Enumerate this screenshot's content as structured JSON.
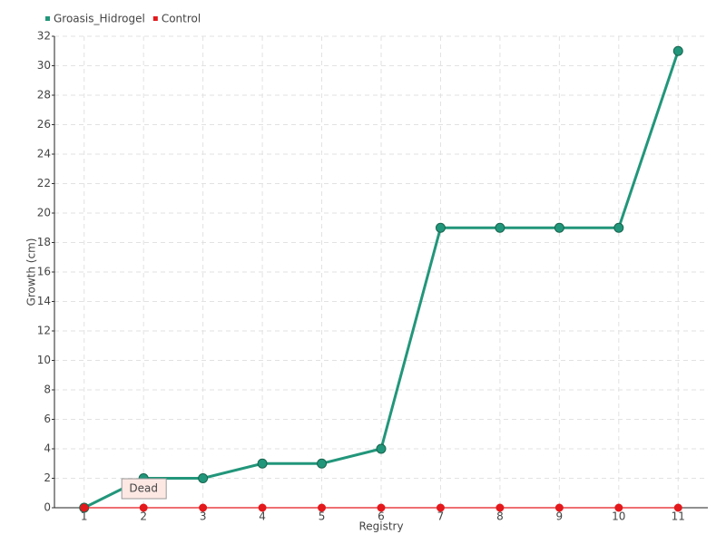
{
  "chart_data": {
    "type": "line",
    "categories": [
      "1",
      "2",
      "3",
      "4",
      "5",
      "6",
      "7",
      "8",
      "9",
      "10",
      "11"
    ],
    "series": [
      {
        "name": "Groasis_Hidrogel",
        "color": "#22967a",
        "values": [
          0,
          2,
          2,
          3,
          3,
          4,
          19,
          19,
          19,
          19,
          31
        ]
      },
      {
        "name": "Control",
        "color": "#e3191c",
        "values": [
          0,
          0,
          0,
          0,
          0,
          0,
          0,
          0,
          0,
          0,
          0
        ]
      }
    ],
    "x_label": "Registry",
    "y_label": "Growth (cm)",
    "annotation": "Dead",
    "ylim": [
      0,
      32
    ],
    "yticks": [
      0,
      2,
      4,
      6,
      8,
      10,
      12,
      14,
      16,
      18,
      20,
      22,
      24,
      26,
      28,
      30,
      32
    ],
    "grid": true
  }
}
